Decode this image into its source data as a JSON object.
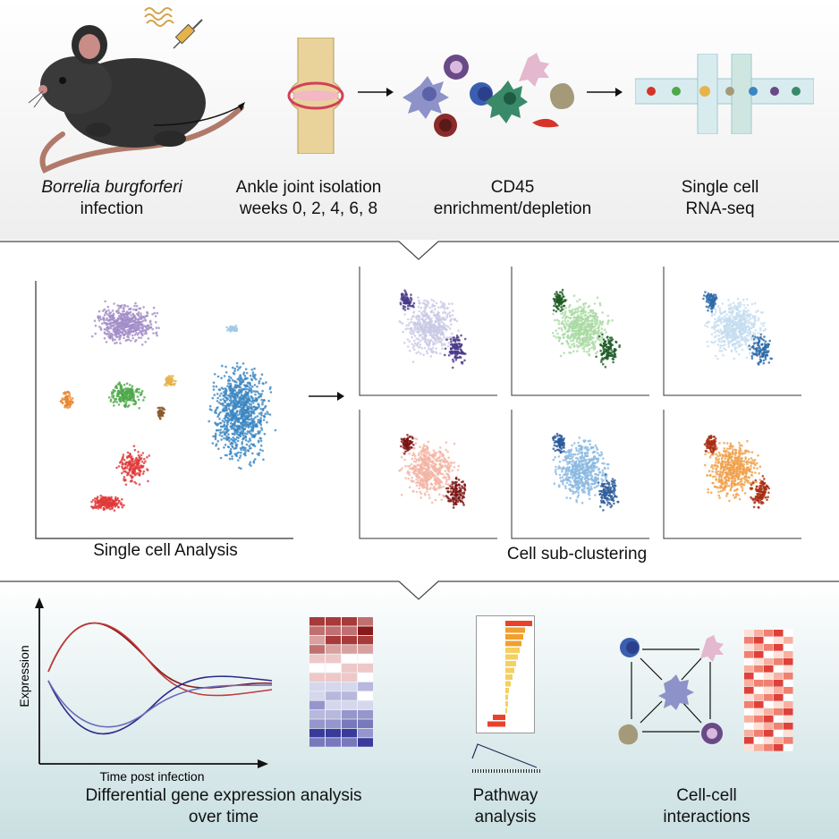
{
  "workflow": {
    "steps": [
      {
        "line1": "Borrelia burgforferi",
        "line2": "infection"
      },
      {
        "line1": "Ankle joint isolation",
        "line2": "weeks 0, 2, 4, 6, 8"
      },
      {
        "line1": "CD45",
        "line2": "enrichment/depletion"
      },
      {
        "line1": "Single cell",
        "line2": "RNA-seq"
      }
    ]
  },
  "analysis": {
    "umap_label": "Single cell Analysis",
    "subcluster_label": "Cell sub-clustering"
  },
  "downstream": {
    "expression_plot": {
      "ylabel": "Expression",
      "xlabel": "Time post infection"
    },
    "dge_label_line1": "Differential gene expression analysis",
    "dge_label_line2": "over time",
    "pathway_label_line1": "Pathway",
    "pathway_label_line2": "analysis",
    "interaction_label_line1": "Cell-cell",
    "interaction_label_line2": "interactions"
  },
  "colors": {
    "macrophage": "#8d92c8",
    "neutrophil": "#6a4a86",
    "dendritic": "#e4b8cf",
    "bcell": "#3a5eb0",
    "fibroblast": "#a49a7a",
    "mast": "#8a2a2a",
    "cluster_blue": "#3a86c2",
    "cluster_purple": "#a38cc8",
    "cluster_red": "#e03a3a",
    "cluster_green": "#4ea84a",
    "cluster_orange": "#e8832a"
  }
}
